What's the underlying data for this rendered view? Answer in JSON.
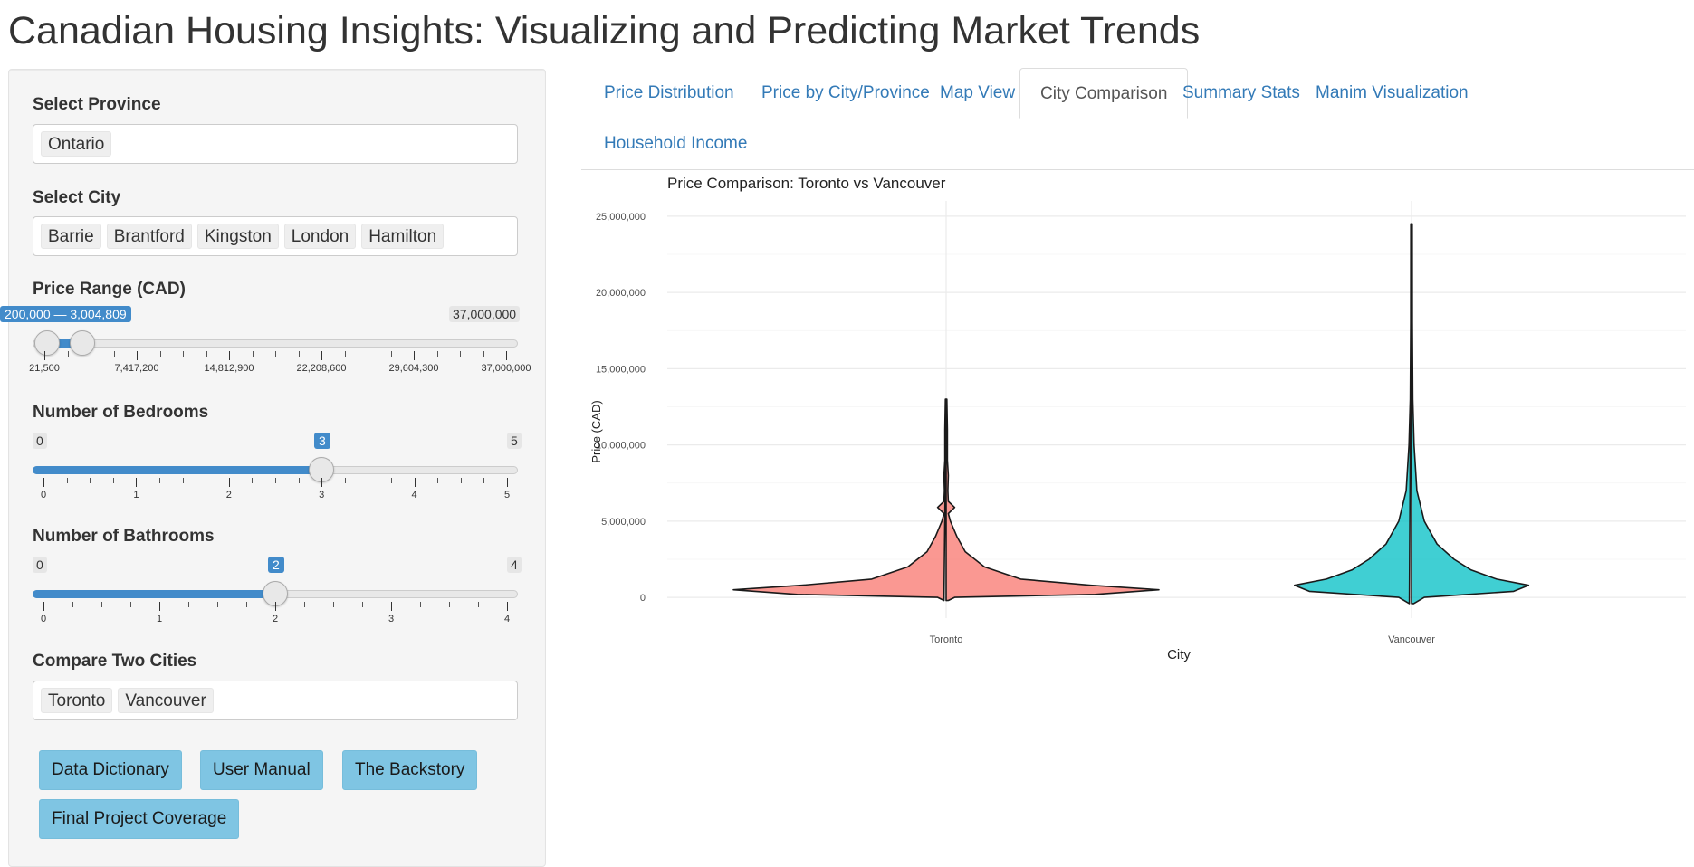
{
  "app": {
    "title": "Canadian Housing Insights: Visualizing and Predicting Market Trends"
  },
  "sidebar": {
    "province": {
      "label": "Select Province",
      "selected": [
        "Ontario"
      ]
    },
    "city": {
      "label": "Select City",
      "selected": [
        "Barrie",
        "Brantford",
        "Kingston",
        "London",
        "Hamilton"
      ]
    },
    "price_range": {
      "label": "Price Range (CAD)",
      "range_label": "200,000 — 3,004,809",
      "min_label": "21,500",
      "max_label": "37,000,000",
      "min": 21500,
      "max": 37000000,
      "from": 200000,
      "to": 3004809,
      "tick_labels": [
        "21,500",
        "7,417,200",
        "14,812,900",
        "22,208,600",
        "29,604,300",
        "37,000,000"
      ]
    },
    "bedrooms": {
      "label": "Number of Bedrooms",
      "min_label": "0",
      "max_label": "5",
      "value_label": "3",
      "min": 0,
      "max": 5,
      "value": 3,
      "tick_labels": [
        "0",
        "1",
        "2",
        "3",
        "4",
        "5"
      ]
    },
    "bathrooms": {
      "label": "Number of Bathrooms",
      "min_label": "0",
      "max_label": "4",
      "value_label": "2",
      "min": 0,
      "max": 4,
      "value": 2,
      "tick_labels": [
        "0",
        "1",
        "2",
        "3",
        "4"
      ]
    },
    "compare": {
      "label": "Compare Two Cities",
      "selected": [
        "Toronto",
        "Vancouver"
      ]
    },
    "buttons": [
      "Data Dictionary",
      "User Manual",
      "The Backstory",
      "Final Project Coverage"
    ]
  },
  "tabs": {
    "items": [
      "Price Distribution",
      "Price by City/Province",
      "Map View",
      "City Comparison",
      "Summary Stats",
      "Manim Visualization",
      "Household Income"
    ],
    "active": "City Comparison"
  },
  "chart_data": {
    "type": "violin",
    "title": "Price Comparison: Toronto vs Vancouver",
    "xlabel": "City",
    "ylabel": "Price (CAD)",
    "categories": [
      "Toronto",
      "Vancouver"
    ],
    "ylim": [
      -1000000,
      26000000
    ],
    "yticks": [
      0,
      5000000,
      10000000,
      15000000,
      20000000,
      25000000
    ],
    "ytick_labels": [
      "0",
      "5,000,000",
      "10,000,000",
      "15,000,000",
      "20,000,000",
      "25,000,000"
    ],
    "series": [
      {
        "name": "Toronto",
        "color": "#f8766d",
        "min": -200000,
        "max": 13000000,
        "density": [
          [
            -200000,
            0.01
          ],
          [
            0,
            0.04
          ],
          [
            200000,
            0.7
          ],
          [
            500000,
            1.0
          ],
          [
            800000,
            0.68
          ],
          [
            1200000,
            0.35
          ],
          [
            2000000,
            0.18
          ],
          [
            3000000,
            0.09
          ],
          [
            4000000,
            0.05
          ],
          [
            5000000,
            0.02
          ],
          [
            5500000,
            0.01
          ],
          [
            5900000,
            0.04
          ],
          [
            6300000,
            0.01
          ],
          [
            7000000,
            0.008
          ],
          [
            8000000,
            0.01
          ],
          [
            9000000,
            0.006
          ],
          [
            11000000,
            0.006
          ],
          [
            13000000,
            0.003
          ]
        ]
      },
      {
        "name": "Vancouver",
        "color": "#00bfc4",
        "min": -400000,
        "max": 24500000,
        "density": [
          [
            -400000,
            0.01
          ],
          [
            0,
            0.06
          ],
          [
            400000,
            0.48
          ],
          [
            800000,
            0.55
          ],
          [
            1200000,
            0.4
          ],
          [
            1800000,
            0.28
          ],
          [
            2500000,
            0.2
          ],
          [
            3500000,
            0.12
          ],
          [
            5000000,
            0.06
          ],
          [
            7000000,
            0.025
          ],
          [
            10000000,
            0.012
          ],
          [
            13000000,
            0.006
          ],
          [
            18000000,
            0.004
          ],
          [
            24500000,
            0.002
          ]
        ]
      }
    ],
    "grid": true
  }
}
